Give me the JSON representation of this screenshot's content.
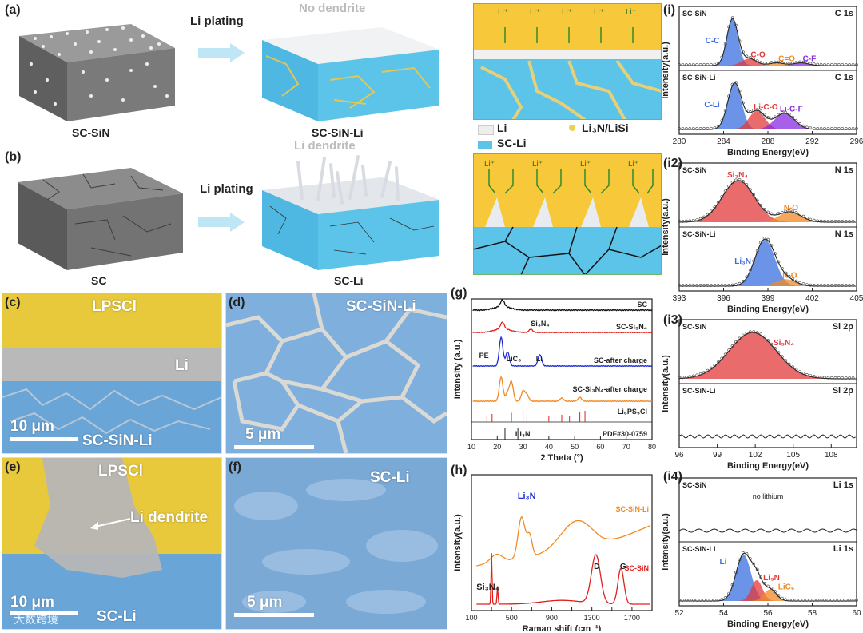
{
  "panel_labels": {
    "a": "(a)",
    "b": "(b)",
    "c": "(c)",
    "d": "(d)",
    "e": "(e)",
    "f": "(f)",
    "g": "(g)",
    "h": "(h)",
    "i": "(i)",
    "i2": "(i2)",
    "i3": "(i3)",
    "i4": "(i4)"
  },
  "schematic": {
    "a_left_caption": "SC-SiN",
    "a_arrow_label": "Li plating",
    "a_top_label": "No dendrite",
    "a_right_caption": "SC-SiN-Li",
    "b_left_caption": "SC",
    "b_arrow_label": "Li plating",
    "b_top_label": "Li dendrite",
    "b_right_caption": "SC-Li",
    "li_ion": "Li⁺",
    "legend_li": "Li",
    "legend_li3n": "Li₃N/LiSi",
    "legend_scli": "SC-Li"
  },
  "sem": {
    "c_top": "LPSCl",
    "c_mid": "Li",
    "c_scale": "10 μm",
    "c_bottom": "SC-SiN-Li",
    "d_title": "SC-SiN-Li",
    "d_scale": "5 μm",
    "e_top": "LPSCl",
    "e_dendrite": "Li dendrite",
    "e_scale": "10 μm",
    "e_bottom": "SC-Li",
    "f_title": "SC-Li",
    "f_scale": "5 μm",
    "watermark": "大数跨境"
  },
  "colors": {
    "yellow": "#f5c93a",
    "blue": "#5bc4e8",
    "xps_blue": "#3a6fe0",
    "xps_red": "#e23a3a",
    "xps_orange": "#f08a24",
    "xps_purple": "#8a2be2",
    "xrd_red": "#e0201e",
    "xrd_blue": "#1f2ad8",
    "xrd_orange": "#f08a24"
  },
  "chart_data": [
    {
      "type": "line",
      "id": "g",
      "title": "",
      "xlabel": "2 Theta (°)",
      "ylabel": "Intensity (a.u.)",
      "xlim": [
        10,
        80
      ],
      "xticks": [
        10,
        20,
        30,
        40,
        50,
        60,
        70,
        80
      ],
      "series": [
        {
          "name": "SC",
          "color": "#111111",
          "peaks": [
            [
              22,
              1.0
            ]
          ]
        },
        {
          "name": "SC-Si₃N₄",
          "color": "#e0201e",
          "peaks": [
            [
              22,
              1.0
            ],
            [
              33,
              0.5
            ]
          ]
        },
        {
          "name": "SC-after charge",
          "color": "#1f2ad8",
          "peaks": [
            [
              21.5,
              4.5
            ],
            [
              24,
              2.2
            ],
            [
              36.5,
              1.8
            ]
          ]
        },
        {
          "name": "SC-Si₃N₄-after charge",
          "color": "#f08a24",
          "peaks": [
            [
              21.5,
              3.8
            ],
            [
              24,
              1.3
            ],
            [
              25.5,
              3.0
            ],
            [
              30,
              1.6
            ],
            [
              31.5,
              1.0
            ],
            [
              45,
              0.5
            ],
            [
              52,
              0.6
            ]
          ]
        }
      ],
      "annotations": [
        "Si₃N₄",
        "PE",
        "LiC₆",
        "Li",
        "Li₆PS₅Cl",
        "Li₃N",
        "PDF#30-0759"
      ],
      "ref_lines_li6ps5cl": [
        16,
        18,
        25.5,
        30,
        31.5,
        40,
        45,
        48,
        52,
        54
      ],
      "ref_lines_li3n": [
        23,
        28
      ]
    },
    {
      "type": "line",
      "id": "h",
      "xlabel": "Raman shift (cm⁻¹)",
      "ylabel": "Intensity(a.u.)",
      "xlim": [
        100,
        1900
      ],
      "xticks": [
        100,
        300,
        500,
        700,
        900,
        1100,
        1300,
        1500,
        1700
      ],
      "xticklabels": [
        "100",
        "",
        "500",
        "",
        "900",
        "",
        "1300",
        "",
        "1700"
      ],
      "series": [
        {
          "name": "SC-SiN-Li",
          "color": "#f08a24"
        },
        {
          "name": "SC-SiN",
          "color": "#e0201e"
        }
      ],
      "annotations": [
        "Li₃N",
        "Si₃N₄",
        "D",
        "G"
      ]
    },
    {
      "type": "line",
      "id": "i1",
      "title": "C 1s",
      "xlabel": "Binding Energy(eV)",
      "ylabel": "Intensity(a.u.)",
      "xlim": [
        280,
        296
      ],
      "xticks": [
        280,
        284,
        288,
        292,
        296
      ],
      "panels": [
        {
          "name": "SC-SiN",
          "peaks": [
            {
              "label": "C-C",
              "center": 284.8,
              "color": "#3a6fe0"
            },
            {
              "label": "C-O",
              "center": 286.3,
              "color": "#e23a3a"
            },
            {
              "label": "C=O",
              "center": 288.8,
              "color": "#f08a24"
            },
            {
              "label": "C-F",
              "center": 291.0,
              "color": "#8a2be2"
            }
          ]
        },
        {
          "name": "SC-SiN-Li",
          "peaks": [
            {
              "label": "C-Li",
              "center": 285.0,
              "color": "#3a6fe0"
            },
            {
              "label": "Li-C-O",
              "center": 287.0,
              "color": "#e23a3a"
            },
            {
              "label": "Li-C-F",
              "center": 289.5,
              "color": "#8a2be2"
            }
          ]
        }
      ]
    },
    {
      "type": "line",
      "id": "i2",
      "title": "N 1s",
      "xlabel": "Binding Energy(eV)",
      "ylabel": "Intensity(a.u.)",
      "xlim": [
        393,
        405
      ],
      "xticks": [
        393,
        396,
        399,
        402,
        405
      ],
      "panels": [
        {
          "name": "SC-SiN",
          "peaks": [
            {
              "label": "Si₃N₄",
              "center": 397.0,
              "color": "#e23a3a"
            },
            {
              "label": "N-O",
              "center": 400.5,
              "color": "#f08a24"
            }
          ]
        },
        {
          "name": "SC-SiN-Li",
          "peaks": [
            {
              "label": "Li₃N",
              "center": 398.8,
              "color": "#3a6fe0"
            },
            {
              "label": "N-O",
              "center": 400.2,
              "color": "#f08a24"
            }
          ]
        }
      ]
    },
    {
      "type": "line",
      "id": "i3",
      "title": "Si 2p",
      "xlabel": "Binding Energy(eV)",
      "ylabel": "Intensity(a.u.)",
      "xlim": [
        96,
        110
      ],
      "xticks": [
        96,
        99,
        102,
        105,
        108
      ],
      "panels": [
        {
          "name": "SC-SiN",
          "peaks": [
            {
              "label": "Si₃N₄",
              "center": 101.8,
              "color": "#e23a3a"
            }
          ]
        },
        {
          "name": "SC-SiN-Li",
          "peaks": []
        }
      ]
    },
    {
      "type": "line",
      "id": "i4",
      "title": "Li 1s",
      "xlabel": "Binding Energy(eV)",
      "ylabel": "Intensity(a.u.)",
      "xlim": [
        52,
        60
      ],
      "xticks": [
        52,
        54,
        56,
        58,
        60
      ],
      "panels": [
        {
          "name": "SC-SiN",
          "note": "no lithium",
          "peaks": []
        },
        {
          "name": "SC-SiN-Li",
          "peaks": [
            {
              "label": "Li",
              "center": 54.9,
              "color": "#3a6fe0"
            },
            {
              "label": "Li₃N",
              "center": 55.5,
              "color": "#e23a3a"
            },
            {
              "label": "LiC₆",
              "center": 56.1,
              "color": "#f08a24"
            }
          ]
        }
      ]
    }
  ]
}
